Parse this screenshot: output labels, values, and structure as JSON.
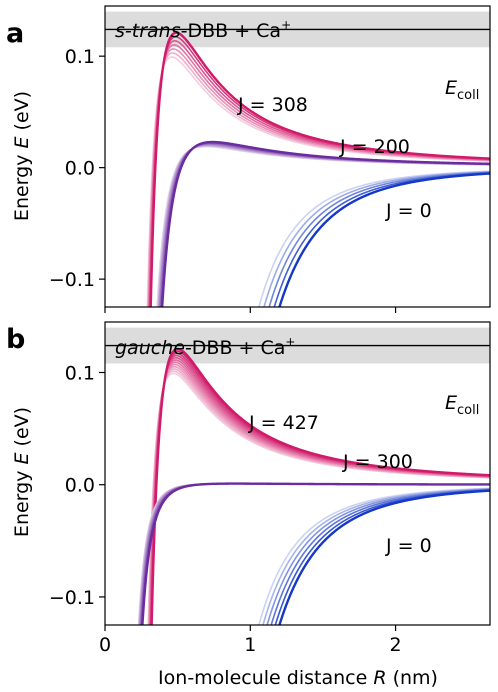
{
  "chart_data": [
    {
      "type": "line",
      "panel_label": "a",
      "title": [
        "s-trans",
        "-DBB + Ca",
        "+"
      ],
      "ylabel": [
        "Energy ",
        "E",
        " (eV)"
      ],
      "xlim": [
        0,
        2.65
      ],
      "ylim": [
        -0.125,
        0.145
      ],
      "yticks": [
        0.1,
        0.0,
        -0.1
      ],
      "ytick_labels": [
        "0.1",
        "0.0",
        "−0.1"
      ],
      "xticks": [
        0,
        1,
        2
      ],
      "ecoll": {
        "value": 0.124,
        "band": [
          0.108,
          0.14
        ],
        "label": [
          "E",
          "coll"
        ]
      },
      "barrier_scale": 0.24,
      "curves": [
        {
          "name": "J = 308",
          "color": "#d01a6a",
          "peak_r": 0.49,
          "peak_e": 0.121,
          "shades": 7
        },
        {
          "name": "J = 200",
          "color": "#6a2c9e",
          "peak_r": 0.74,
          "peak_e": 0.023,
          "shades": 6
        },
        {
          "name": "J = 0",
          "color": "#1438c8",
          "peak_r": null,
          "peak_e": null,
          "shades": 5
        }
      ],
      "curve_labels": [
        "J = 308",
        "J = 200",
        "J = 0"
      ]
    },
    {
      "type": "line",
      "panel_label": "b",
      "title": [
        "gauche",
        "-DBB + Ca",
        "+"
      ],
      "ylabel": [
        "Energy ",
        "E",
        " (eV)"
      ],
      "xlabel": [
        "Ion-molecule distance ",
        "R",
        " (nm)"
      ],
      "xlim": [
        0,
        2.65
      ],
      "ylim": [
        -0.125,
        0.145
      ],
      "yticks": [
        0.1,
        0.0,
        -0.1
      ],
      "ytick_labels": [
        "0.1",
        "0.0",
        "−0.1"
      ],
      "xticks": [
        0,
        1,
        2
      ],
      "xtick_labels": [
        "0",
        "1",
        "2"
      ],
      "ecoll": {
        "value": 0.124,
        "band": [
          0.108,
          0.14
        ],
        "label": [
          "E",
          "coll"
        ]
      },
      "barrier_scale": 0.24,
      "curves": [
        {
          "name": "J = 427",
          "color": "#d01a6a",
          "peak_r": 0.5,
          "peak_e": 0.121,
          "shades": 12
        },
        {
          "name": "J = 300",
          "color": "#6a2c9e",
          "peak_r": 0.9,
          "peak_e": 0.001,
          "shades": 10
        },
        {
          "name": "J = 0",
          "color": "#1438c8",
          "peak_r": null,
          "peak_e": null,
          "shades": 6
        }
      ],
      "curve_labels": [
        "J = 427",
        "J = 300",
        "J = 0"
      ]
    }
  ]
}
